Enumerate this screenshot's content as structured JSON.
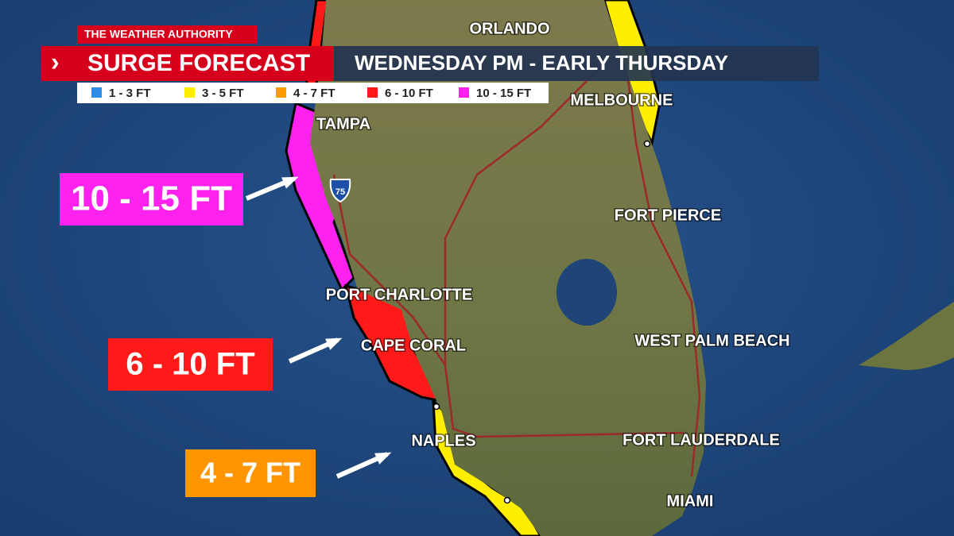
{
  "header": {
    "brand": "THE WEATHER AUTHORITY",
    "chevron": "›",
    "title": "SURGE FORECAST",
    "subtitle": "WEDNESDAY PM - EARLY THURSDAY"
  },
  "legend": [
    {
      "label": "1 - 3 FT",
      "color": "#2f8fe8"
    },
    {
      "label": "3 - 5 FT",
      "color": "#ffee00"
    },
    {
      "label": "4 - 7 FT",
      "color": "#ff9c00"
    },
    {
      "label": "6 - 10 FT",
      "color": "#ff1a1a"
    },
    {
      "label": "10 - 15 FT",
      "color": "#ff22ee"
    }
  ],
  "callouts": [
    {
      "label": "10 - 15 FT",
      "color": "#ff22ee"
    },
    {
      "label": "6 - 10 FT",
      "color": "#ff1a1a"
    },
    {
      "label": "4 - 7 FT",
      "color": "#ff9500"
    }
  ],
  "cities": [
    "ORLANDO",
    "MELBOURNE",
    "TAMPA",
    "FORT PIERCE",
    "PORT CHARLOTTE",
    "CAPE CORAL",
    "WEST PALM BEACH",
    "NAPLES",
    "FORT LAUDERDALE",
    "MIAMI"
  ],
  "shield": "75"
}
